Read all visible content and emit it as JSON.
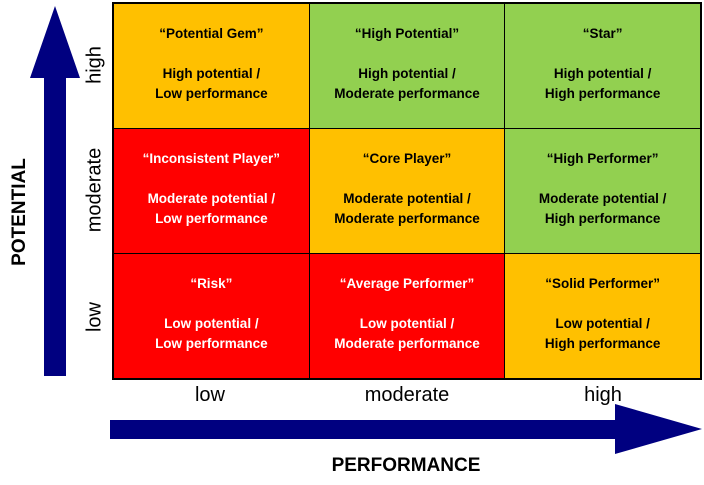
{
  "axes": {
    "y_title": "POTENTIAL",
    "x_title": "PERFORMANCE",
    "y_levels": [
      "high",
      "moderate",
      "low"
    ],
    "x_levels": [
      "low",
      "moderate",
      "high"
    ]
  },
  "colors": {
    "red": "#ff0000",
    "yellow": "#ffc000",
    "green": "#92d050",
    "arrow": "#000080"
  },
  "cells": [
    {
      "name": "“Potential Gem”",
      "line1": "High potential /",
      "line2": "Low performance",
      "color": "yellow"
    },
    {
      "name": "“High Potential”",
      "line1": "High potential /",
      "line2": "Moderate performance",
      "color": "green"
    },
    {
      "name": "“Star”",
      "line1": "High potential /",
      "line2": "High performance",
      "color": "green"
    },
    {
      "name": "“Inconsistent Player”",
      "line1": "Moderate potential /",
      "line2": "Low performance",
      "color": "red"
    },
    {
      "name": "“Core Player”",
      "line1": "Moderate potential /",
      "line2": "Moderate performance",
      "color": "yellow"
    },
    {
      "name": "“High Performer”",
      "line1": "Moderate potential /",
      "line2": "High performance",
      "color": "green"
    },
    {
      "name": "“Risk”",
      "line1": "Low potential /",
      "line2": "Low performance",
      "color": "red"
    },
    {
      "name": "“Average Performer”",
      "line1": "Low potential /",
      "line2": "Moderate performance",
      "color": "red"
    },
    {
      "name": "“Solid Performer”",
      "line1": "Low potential /",
      "line2": "High performance",
      "color": "yellow"
    }
  ]
}
